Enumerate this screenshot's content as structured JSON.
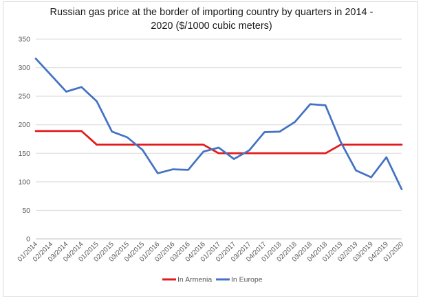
{
  "chart_data": {
    "type": "line",
    "title_line1": "Russian gas price at the border of importing country by quarters in 2014 -",
    "title_line2": "2020 ($/1000 cubic meters)",
    "categories": [
      "01/2014",
      "02/2014",
      "03/2014",
      "04/2014",
      "01/2015",
      "02/2015",
      "03/2015",
      "04/2015",
      "01/2016",
      "02/2016",
      "03/2016",
      "04/2016",
      "01/2017",
      "02/2017",
      "03/2017",
      "04/2017",
      "01/2018",
      "02/2018",
      "03/2018",
      "04/2018",
      "01/2019",
      "02/2019",
      "03/2019",
      "04/2019",
      "01/2020"
    ],
    "series": [
      {
        "name": "In Armenia",
        "color": "#e31a1c",
        "values": [
          189,
          189,
          189,
          189,
          165,
          165,
          165,
          165,
          165,
          165,
          165,
          165,
          150,
          150,
          150,
          150,
          150,
          150,
          150,
          150,
          165,
          165,
          165,
          165,
          165
        ]
      },
      {
        "name": "In Europe",
        "color": "#4472c4",
        "values": [
          316,
          287,
          258,
          266,
          241,
          188,
          178,
          156,
          115,
          122,
          121,
          153,
          160,
          140,
          155,
          187,
          188,
          205,
          236,
          234,
          170,
          120,
          108,
          143,
          87
        ]
      }
    ],
    "yticks": [
      0,
      50,
      100,
      150,
      200,
      250,
      300,
      350
    ],
    "ylim": [
      0,
      350
    ],
    "grid": true,
    "legend": "bottom"
  }
}
